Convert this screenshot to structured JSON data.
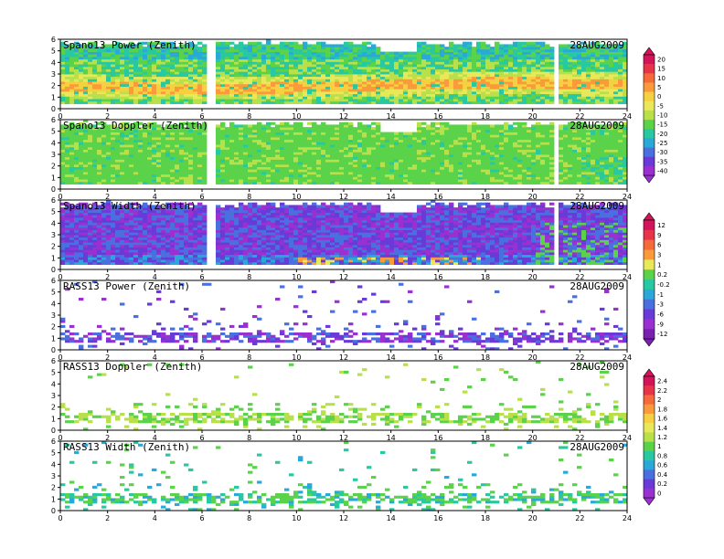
{
  "date_label": "28AUG2009",
  "x_ticks": [
    "0",
    "2",
    "4",
    "6",
    "8",
    "10",
    "12",
    "14",
    "16",
    "18",
    "20",
    "22",
    "24"
  ],
  "y_ticks": [
    "0",
    "1",
    "2",
    "3",
    "4",
    "5",
    "6"
  ],
  "colorbars": [
    {
      "id": "cb1",
      "labels": [
        "20",
        "15",
        "10",
        "5",
        "0",
        "-5",
        "-10",
        "-15",
        "-20",
        "-25",
        "-30",
        "-35",
        "-40"
      ],
      "colors": [
        "#d4145a",
        "#e8344a",
        "#f56a3a",
        "#fa9a3a",
        "#f5d040",
        "#e8e85a",
        "#b8e04a",
        "#5ad24a",
        "#28c8a0",
        "#2aa8d8",
        "#4a70e0",
        "#6a3ad8",
        "#9a30d0"
      ]
    },
    {
      "id": "cb2",
      "labels": [
        "12",
        "9",
        "6",
        "3",
        "1",
        "0.2",
        "-0.2",
        "-1",
        "-3",
        "-6",
        "-9",
        "-12"
      ],
      "colors": [
        "#d4145a",
        "#e8344a",
        "#f56a3a",
        "#fa9a3a",
        "#e8e85a",
        "#5ad24a",
        "#28c8a0",
        "#2aa8d8",
        "#4a70e0",
        "#6a3ad8",
        "#9a30d0",
        "#7a20b0"
      ]
    },
    {
      "id": "cb3",
      "labels": [
        "2.4",
        "2.2",
        "2",
        "1.8",
        "1.6",
        "1.4",
        "1.2",
        "1",
        "0.8",
        "0.6",
        "0.4",
        "0.2",
        "0"
      ],
      "colors": [
        "#d4145a",
        "#e8344a",
        "#f56a3a",
        "#fa9a3a",
        "#f5d040",
        "#e8e85a",
        "#b8e04a",
        "#5ad24a",
        "#28c8a0",
        "#2aa8d8",
        "#4a70e0",
        "#6a3ad8",
        "#9a30d0"
      ]
    }
  ],
  "chart_data": [
    {
      "type": "heatmap",
      "title": "Spano13 Power (Zenith)",
      "annotation": "28AUG2009",
      "xlim": [
        0,
        24
      ],
      "ylim": [
        0,
        6
      ],
      "colorbar": "cb1",
      "dominant_level": "-5 to 5 (warm band near 2 km)"
    },
    {
      "type": "heatmap",
      "title": "Spano13 Doppler (Zenith)",
      "annotation": "28AUG2009",
      "xlim": [
        0,
        24
      ],
      "ylim": [
        0,
        6
      ],
      "colorbar": "cb1",
      "dominant_level": "-15"
    },
    {
      "type": "heatmap",
      "title": "Spano13 Width (Zenith)",
      "annotation": "28AUG2009",
      "xlim": [
        0,
        24
      ],
      "ylim": [
        0,
        6
      ],
      "colorbar": "cb2",
      "dominant_level": "-1 to -6"
    },
    {
      "type": "heatmap",
      "title": "RASS13 Power (Zenith)",
      "annotation": "28AUG2009",
      "xlim": [
        0,
        24
      ],
      "ylim": [
        0,
        6
      ],
      "colorbar": "cb2",
      "dominant_level": "-6 to -12, sparse"
    },
    {
      "type": "heatmap",
      "title": "RASS13 Doppler (Zenith)",
      "annotation": "28AUG2009",
      "xlim": [
        0,
        24
      ],
      "ylim": [
        0,
        6
      ],
      "colorbar": "cb3",
      "dominant_level": "1.2 to 1.4, sparse"
    },
    {
      "type": "heatmap",
      "title": "RASS13 Width (Zenith)",
      "annotation": "28AUG2009",
      "xlim": [
        0,
        24
      ],
      "ylim": [
        0,
        6
      ],
      "colorbar": "cb3",
      "dominant_level": "0.6 to 1, sparse"
    }
  ]
}
